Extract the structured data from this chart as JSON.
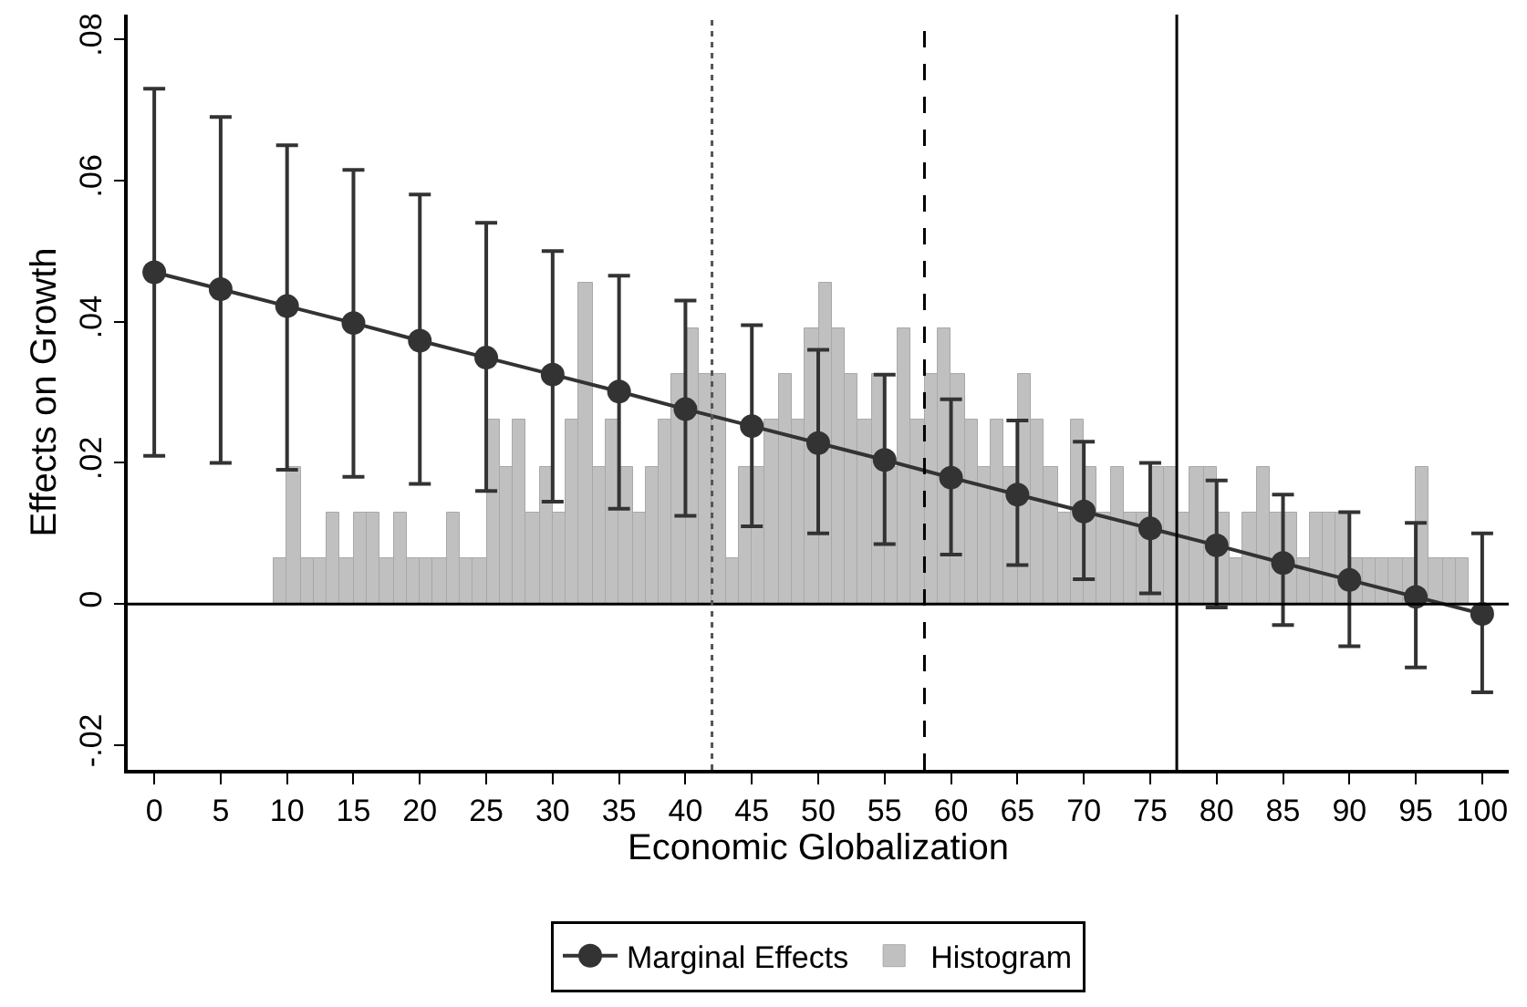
{
  "chart_data": {
    "type": "line",
    "xlabel": "Economic Globalization",
    "ylabel": "Effects on Growth",
    "xlim": [
      -2,
      102
    ],
    "xticks": [
      0,
      5,
      10,
      15,
      20,
      25,
      30,
      35,
      40,
      45,
      50,
      55,
      60,
      65,
      70,
      75,
      80,
      85,
      90,
      95,
      100
    ],
    "ylim": [
      -0.0235,
      0.0835
    ],
    "yticks": [
      {
        "value": -0.02,
        "label": "-.02"
      },
      {
        "value": 0,
        "label": "0"
      },
      {
        "value": 0.02,
        "label": ".02"
      },
      {
        "value": 0.04,
        "label": ".04"
      },
      {
        "value": 0.06,
        "label": ".06"
      },
      {
        "value": 0.08,
        "label": ".08"
      }
    ],
    "legend": "bottom",
    "marker": "circle",
    "line_style": "solid",
    "series": [
      {
        "name": "Histogram",
        "type": "histogram",
        "color": "#c0c0c0",
        "bins": [
          9,
          10,
          11,
          12,
          13,
          14,
          15,
          16,
          17,
          18,
          19,
          20,
          21,
          22,
          23,
          24,
          25,
          26,
          27,
          28,
          29,
          30,
          31,
          32,
          33,
          34,
          35,
          36,
          37,
          38,
          39,
          40,
          41,
          42,
          43,
          44,
          45,
          46,
          47,
          48,
          49,
          50,
          51,
          52,
          53,
          54,
          55,
          56,
          57,
          58,
          59,
          60,
          61,
          62,
          63,
          64,
          65,
          66,
          67,
          68,
          69,
          70,
          71,
          72,
          73,
          74,
          75,
          76,
          77,
          78,
          79,
          80,
          81,
          82,
          83,
          84,
          85,
          86,
          87,
          88,
          89,
          90,
          91,
          92,
          93,
          94,
          95,
          96,
          97,
          98,
          99
        ],
        "values": [
          0.0065,
          0.0195,
          0.0065,
          0.0065,
          0.013,
          0.0065,
          0.013,
          0.013,
          0.0065,
          0.013,
          0.0065,
          0.0065,
          0.0065,
          0.013,
          0.0065,
          0.0065,
          0.026,
          0.0195,
          0.026,
          0.013,
          0.0195,
          0.013,
          0.026,
          0.0455,
          0.0195,
          0.026,
          0.0195,
          0.013,
          0.0195,
          0.026,
          0.0325,
          0.039,
          0.0325,
          0.0325,
          0.0065,
          0.0195,
          0.0195,
          0.026,
          0.0325,
          0.026,
          0.039,
          0.0455,
          0.039,
          0.0325,
          0.026,
          0.0325,
          0.0195,
          0.039,
          0.026,
          0.0325,
          0.039,
          0.0325,
          0.026,
          0.0195,
          0.026,
          0.0195,
          0.0325,
          0.026,
          0.0195,
          0.013,
          0.026,
          0.0195,
          0.013,
          0.0195,
          0.013,
          0.013,
          0.0195,
          0.0195,
          0.013,
          0.0195,
          0.0195,
          0.013,
          0.0065,
          0.013,
          0.0195,
          0.013,
          0.013,
          0.0065,
          0.013,
          0.013,
          0.013,
          0.0065,
          0.0065,
          0.0065,
          0.0065,
          0.0065,
          0.0195,
          0.0065,
          0.0065,
          0.0065
        ]
      },
      {
        "name": "Marginal Effects",
        "color": "#333333",
        "x": [
          0,
          5,
          10,
          15,
          20,
          25,
          30,
          35,
          40,
          45,
          50,
          55,
          60,
          65,
          70,
          75,
          80,
          85,
          90,
          95,
          100
        ],
        "values": [
          0.047,
          0.0446,
          0.0422,
          0.0398,
          0.0373,
          0.0349,
          0.0325,
          0.0301,
          0.0276,
          0.0252,
          0.0228,
          0.0204,
          0.0179,
          0.0155,
          0.0131,
          0.0107,
          0.0083,
          0.0058,
          0.0034,
          0.001,
          -0.0014
        ],
        "errors": [
          [
            0.021,
            0.073
          ],
          [
            0.02,
            0.069
          ],
          [
            0.019,
            0.065
          ],
          [
            0.018,
            0.0615
          ],
          [
            0.017,
            0.058
          ],
          [
            0.016,
            0.054
          ],
          [
            0.0145,
            0.05
          ],
          [
            0.0135,
            0.0465
          ],
          [
            0.0125,
            0.043
          ],
          [
            0.011,
            0.0395
          ],
          [
            0.01,
            0.036
          ],
          [
            0.0085,
            0.0325
          ],
          [
            0.007,
            0.029
          ],
          [
            0.0055,
            0.026
          ],
          [
            0.0035,
            0.023
          ],
          [
            0.0015,
            0.02
          ],
          [
            -0.0005,
            0.0175
          ],
          [
            -0.003,
            0.0155
          ],
          [
            -0.006,
            0.013
          ],
          [
            -0.009,
            0.0115
          ],
          [
            -0.0125,
            0.01
          ]
        ]
      }
    ],
    "ref_lines": [
      {
        "axis": "y",
        "value": 0,
        "color": "#000000",
        "line_style": "solid"
      },
      {
        "axis": "x",
        "value": 42,
        "color": "#555555",
        "line_style": "dotted"
      },
      {
        "axis": "x",
        "value": 58,
        "color": "#000000",
        "line_style": "dashed"
      },
      {
        "axis": "x",
        "value": 77,
        "color": "#000000",
        "line_style": "solid"
      }
    ]
  }
}
